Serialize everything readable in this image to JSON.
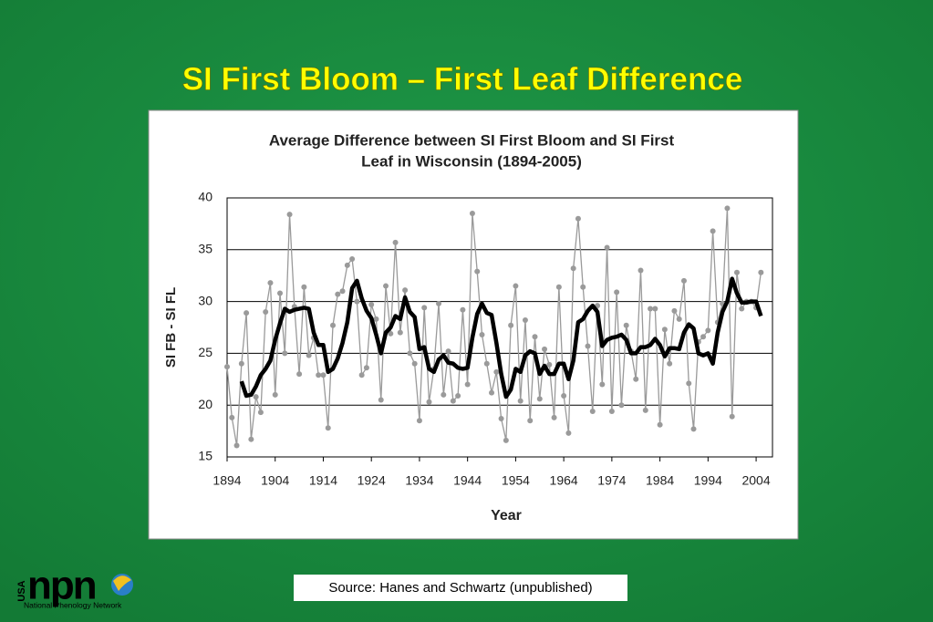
{
  "slide": {
    "title": "SI First Bloom – First Leaf Difference",
    "source": "Source:  Hanes and Schwartz (unpublished)",
    "logo": {
      "country": "USA",
      "acronym": "npn",
      "name": "National Phenology Network"
    }
  },
  "chart_data": {
    "type": "line",
    "title_lines": [
      "Average Difference between SI First Bloom and SI First",
      "Leaf in Wisconsin (1894-2005)"
    ],
    "xlabel": "Year",
    "ylabel": "SI FB - SI FL",
    "x": [
      1894,
      1895,
      1896,
      1897,
      1898,
      1899,
      1900,
      1901,
      1902,
      1903,
      1904,
      1905,
      1906,
      1907,
      1908,
      1909,
      1910,
      1911,
      1912,
      1913,
      1914,
      1915,
      1916,
      1917,
      1918,
      1919,
      1920,
      1921,
      1922,
      1923,
      1924,
      1925,
      1926,
      1927,
      1928,
      1929,
      1930,
      1931,
      1932,
      1933,
      1934,
      1935,
      1936,
      1937,
      1938,
      1939,
      1940,
      1941,
      1942,
      1943,
      1944,
      1945,
      1946,
      1947,
      1948,
      1949,
      1950,
      1951,
      1952,
      1953,
      1954,
      1955,
      1956,
      1957,
      1958,
      1959,
      1960,
      1961,
      1962,
      1963,
      1964,
      1965,
      1966,
      1967,
      1968,
      1969,
      1970,
      1971,
      1972,
      1973,
      1974,
      1975,
      1976,
      1977,
      1978,
      1979,
      1980,
      1981,
      1982,
      1983,
      1984,
      1985,
      1986,
      1987,
      1988,
      1989,
      1990,
      1991,
      1992,
      1993,
      1994,
      1995,
      1996,
      1997,
      1998,
      1999,
      2000,
      2001,
      2002,
      2003,
      2004,
      2005
    ],
    "series": [
      {
        "color": "#9a9a9a",
        "markers": true,
        "values": [
          23.7,
          18.8,
          16.1,
          24.0,
          28.9,
          16.7,
          20.8,
          19.3,
          29.0,
          31.8,
          21.0,
          30.8,
          25.0,
          38.4,
          29.5,
          23.0,
          31.4,
          24.8,
          26.5,
          22.9,
          22.9,
          17.8,
          27.7,
          30.7,
          31.0,
          33.5,
          34.1,
          30.0,
          22.9,
          23.6,
          29.7,
          28.3,
          20.5,
          31.5,
          26.9,
          35.7,
          27.0,
          31.1,
          25.0,
          24.0,
          18.5,
          29.4,
          20.3,
          23.5,
          29.8,
          21.0,
          25.2,
          20.4,
          20.9,
          29.2,
          22.0,
          38.5,
          32.9,
          26.8,
          24.0,
          21.2,
          23.2,
          18.7,
          16.6,
          27.7,
          31.5,
          20.4,
          28.2,
          18.5,
          26.6,
          20.6,
          25.4,
          23.9,
          18.8,
          31.4,
          20.9,
          17.3,
          33.2,
          38.0,
          31.4,
          25.7,
          19.4,
          29.6,
          22.0,
          35.2,
          19.4,
          30.9,
          20.0,
          27.7,
          25.2,
          22.5,
          33.0,
          19.5,
          29.3,
          29.3,
          18.1,
          27.3,
          24.0,
          29.1,
          28.3,
          32.0,
          22.1,
          17.7,
          26.1,
          26.6,
          27.2,
          36.8,
          28.0,
          29.8,
          39.0,
          18.9,
          32.8,
          29.3,
          30.0,
          30.0,
          29.4,
          32.8
        ]
      },
      {
        "color": "#000000",
        "markers": false,
        "values": [
          null,
          null,
          null,
          22.3,
          20.9,
          21.0,
          21.8,
          22.9,
          23.5,
          24.3,
          26.3,
          27.9,
          29.3,
          29.0,
          29.2,
          29.3,
          29.4,
          29.3,
          27.0,
          25.8,
          25.8,
          23.2,
          23.5,
          24.5,
          26.0,
          28.0,
          31.3,
          32.0,
          30.3,
          29.1,
          28.4,
          26.8,
          25.0,
          27.0,
          27.5,
          28.6,
          28.3,
          30.4,
          29.0,
          28.5,
          25.4,
          25.6,
          23.5,
          23.2,
          24.4,
          24.8,
          24.1,
          24.0,
          23.6,
          23.5,
          23.6,
          26.5,
          28.8,
          29.8,
          28.9,
          28.7,
          26.0,
          23.0,
          20.8,
          21.5,
          23.5,
          23.2,
          24.8,
          25.2,
          25.0,
          23.0,
          23.8,
          23.0,
          23.0,
          24.0,
          24.0,
          22.5,
          24.3,
          28.0,
          28.3,
          29.1,
          29.6,
          29.0,
          25.7,
          26.3,
          26.5,
          26.6,
          26.8,
          26.3,
          25.0,
          25.0,
          25.6,
          25.6,
          25.8,
          26.4,
          25.8,
          24.7,
          25.5,
          25.5,
          25.4,
          27.0,
          27.8,
          27.4,
          25.0,
          24.8,
          25.0,
          24.0,
          27.0,
          29.0,
          30.0,
          32.2,
          30.8,
          29.9,
          29.9,
          30.0,
          30.0,
          28.6
        ]
      }
    ],
    "xlim": [
      1894,
      2007.4
    ],
    "xticks": [
      1894,
      1904,
      1914,
      1924,
      1934,
      1944,
      1954,
      1964,
      1974,
      1984,
      1994,
      2004
    ],
    "ylim": [
      15,
      40
    ],
    "yticks": [
      15,
      20,
      25,
      30,
      35,
      40
    ],
    "grid": true
  }
}
